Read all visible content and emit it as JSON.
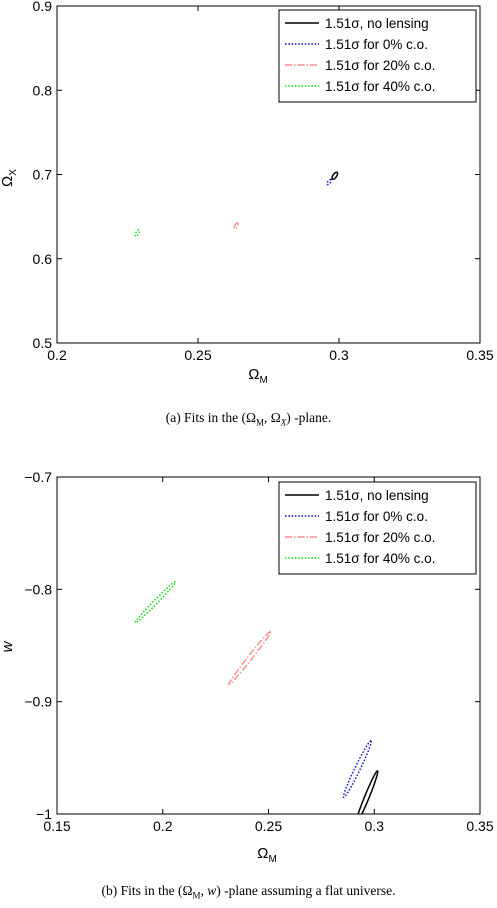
{
  "figures": [
    {
      "caption": "(a) Fits in the (Ω_M, Ω_X) -plane.",
      "chart_data": {
        "type": "line",
        "xlabel": "Ω_M",
        "ylabel": "Ω_X",
        "xlim": [
          0.2,
          0.35
        ],
        "ylim": [
          0.5,
          0.9
        ],
        "xticks": [
          "0.2",
          "0.25",
          "0.3",
          "0.35"
        ],
        "yticks": [
          "0.5",
          "0.6",
          "0.7",
          "0.8",
          "0.9"
        ],
        "legend_position": "top-right",
        "grid": false,
        "series": [
          {
            "name": "1.51σ, no lensing",
            "style": "solid",
            "color": "#000000",
            "ellipse": {
              "cx": 0.2985,
              "cy": 0.6985,
              "a": 0.0115,
              "b": 0.0045,
              "rot_deg": 64
            }
          },
          {
            "name": "1.51σ for 0% c.o.",
            "style": "dotted",
            "color": "#0000cc",
            "ellipse": {
              "cx": 0.2965,
              "cy": 0.691,
              "a": 0.0082,
              "b": 0.0034,
              "rot_deg": 62
            }
          },
          {
            "name": "1.51σ for 20% c.o.",
            "style": "dashdot",
            "color": "#ff8a8a",
            "ellipse": {
              "cx": 0.2635,
              "cy": 0.639,
              "a": 0.0095,
              "b": 0.0033,
              "rot_deg": 69
            }
          },
          {
            "name": "1.51σ for 40% c.o.",
            "style": "dotted",
            "color": "#00dd00",
            "ellipse": {
              "cx": 0.2285,
              "cy": 0.6305,
              "a": 0.0103,
              "b": 0.0034,
              "rot_deg": 68
            }
          }
        ]
      }
    },
    {
      "caption": "(b) Fits in the (Ω_M, w) -plane assuming a flat universe.",
      "chart_data": {
        "type": "line",
        "xlabel": "Ω_M",
        "ylabel": "w",
        "xlim": [
          0.15,
          0.35
        ],
        "ylim": [
          -1,
          -0.7
        ],
        "xticks": [
          "0.15",
          "0.2",
          "0.25",
          "0.3",
          "0.35"
        ],
        "yticks": [
          "−1",
          "−0.9",
          "−0.8",
          "−0.7"
        ],
        "legend_position": "top-right",
        "grid": false,
        "series": [
          {
            "name": "1.51σ, no lensing",
            "style": "solid",
            "color": "#000000",
            "ellipse": {
              "cx": 0.2965,
              "cy": -0.985,
              "a": 0.082,
              "b": 0.0055,
              "rot_deg": 72,
              "clip_below": -1
            }
          },
          {
            "name": "1.51σ for 0% c.o.",
            "style": "dotted",
            "color": "#0000cc",
            "ellipse": {
              "cx": 0.292,
              "cy": -0.96,
              "a": 0.09,
              "b": 0.0065,
              "rot_deg": 69,
              "clip_below": -1
            }
          },
          {
            "name": "1.51σ for 20% c.o.",
            "style": "dashdot",
            "color": "#ff8a8a",
            "ellipse": {
              "cx": 0.2412,
              "cy": -0.861,
              "a": 0.093,
              "b": 0.0055,
              "rot_deg": 58
            }
          },
          {
            "name": "1.51σ for 40% c.o.",
            "style": "dotted",
            "color": "#00dd00",
            "ellipse": {
              "cx": 0.1965,
              "cy": -0.8115,
              "a": 0.077,
              "b": 0.0052,
              "rot_deg": 52
            }
          }
        ]
      }
    }
  ]
}
